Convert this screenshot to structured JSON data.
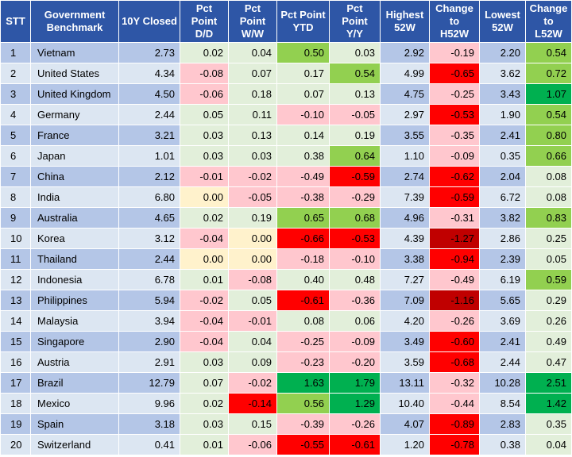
{
  "headers": [
    {
      "line1": "STT",
      "line2": ""
    },
    {
      "line1": "Government",
      "line2": "Benchmark"
    },
    {
      "line1": "10Y Closed",
      "line2": ""
    },
    {
      "line1": "Pct",
      "line2": "Point",
      "line3": "D/D"
    },
    {
      "line1": "Pct",
      "line2": "Point",
      "line3": "W/W"
    },
    {
      "line1": "Pct Point",
      "line2": "YTD"
    },
    {
      "line1": "Pct",
      "line2": "Point",
      "line3": "Y/Y"
    },
    {
      "line1": "Highest",
      "line2": "52W"
    },
    {
      "line1": "Change",
      "line2": "to",
      "line3": "H52W"
    },
    {
      "line1": "Lowest",
      "line2": "52W"
    },
    {
      "line1": "Change",
      "line2": "to",
      "line3": "L52W"
    }
  ],
  "rows": [
    {
      "stt": "1",
      "name": "Vietnam",
      "closed": "2.73",
      "dd": "0.02",
      "ww": "0.04",
      "ytd": "0.50",
      "yy": "0.03",
      "high": "2.92",
      "ch": "-0.19",
      "low": "2.20",
      "cl": "0.54"
    },
    {
      "stt": "2",
      "name": "United States",
      "closed": "4.34",
      "dd": "-0.08",
      "ww": "0.07",
      "ytd": "0.17",
      "yy": "0.54",
      "high": "4.99",
      "ch": "-0.65",
      "low": "3.62",
      "cl": "0.72"
    },
    {
      "stt": "3",
      "name": "United Kingdom",
      "closed": "4.50",
      "dd": "-0.06",
      "ww": "0.18",
      "ytd": "0.07",
      "yy": "0.13",
      "high": "4.75",
      "ch": "-0.25",
      "low": "3.43",
      "cl": "1.07"
    },
    {
      "stt": "4",
      "name": "Germany",
      "closed": "2.44",
      "dd": "0.05",
      "ww": "0.11",
      "ytd": "-0.10",
      "yy": "-0.05",
      "high": "2.97",
      "ch": "-0.53",
      "low": "1.90",
      "cl": "0.54"
    },
    {
      "stt": "5",
      "name": "France",
      "closed": "3.21",
      "dd": "0.03",
      "ww": "0.13",
      "ytd": "0.14",
      "yy": "0.19",
      "high": "3.55",
      "ch": "-0.35",
      "low": "2.41",
      "cl": "0.80"
    },
    {
      "stt": "6",
      "name": "Japan",
      "closed": "1.01",
      "dd": "0.03",
      "ww": "0.03",
      "ytd": "0.38",
      "yy": "0.64",
      "high": "1.10",
      "ch": "-0.09",
      "low": "0.35",
      "cl": "0.66"
    },
    {
      "stt": "7",
      "name": "China",
      "closed": "2.12",
      "dd": "-0.01",
      "ww": "-0.02",
      "ytd": "-0.49",
      "yy": "-0.59",
      "high": "2.74",
      "ch": "-0.62",
      "low": "2.04",
      "cl": "0.08"
    },
    {
      "stt": "8",
      "name": "India",
      "closed": "6.80",
      "dd": "0.00",
      "ww": "-0.05",
      "ytd": "-0.38",
      "yy": "-0.29",
      "high": "7.39",
      "ch": "-0.59",
      "low": "6.72",
      "cl": "0.08"
    },
    {
      "stt": "9",
      "name": "Australia",
      "closed": "4.65",
      "dd": "0.02",
      "ww": "0.19",
      "ytd": "0.65",
      "yy": "0.68",
      "high": "4.96",
      "ch": "-0.31",
      "low": "3.82",
      "cl": "0.83"
    },
    {
      "stt": "10",
      "name": "Korea",
      "closed": "3.12",
      "dd": "-0.04",
      "ww": "0.00",
      "ytd": "-0.66",
      "yy": "-0.53",
      "high": "4.39",
      "ch": "-1.27",
      "low": "2.86",
      "cl": "0.25"
    },
    {
      "stt": "11",
      "name": "Thailand",
      "closed": "2.44",
      "dd": "0.00",
      "ww": "0.00",
      "ytd": "-0.18",
      "yy": "-0.10",
      "high": "3.38",
      "ch": "-0.94",
      "low": "2.39",
      "cl": "0.05"
    },
    {
      "stt": "12",
      "name": "Indonesia",
      "closed": "6.78",
      "dd": "0.01",
      "ww": "-0.08",
      "ytd": "0.40",
      "yy": "0.48",
      "high": "7.27",
      "ch": "-0.49",
      "low": "6.19",
      "cl": "0.59"
    },
    {
      "stt": "13",
      "name": "Philippines",
      "closed": "5.94",
      "dd": "-0.02",
      "ww": "0.05",
      "ytd": "-0.61",
      "yy": "-0.36",
      "high": "7.09",
      "ch": "-1.16",
      "low": "5.65",
      "cl": "0.29"
    },
    {
      "stt": "14",
      "name": "Malaysia",
      "closed": "3.94",
      "dd": "-0.04",
      "ww": "-0.01",
      "ytd": "0.08",
      "yy": "0.06",
      "high": "4.20",
      "ch": "-0.26",
      "low": "3.69",
      "cl": "0.26"
    },
    {
      "stt": "15",
      "name": "Singapore",
      "closed": "2.90",
      "dd": "-0.04",
      "ww": "0.04",
      "ytd": "-0.25",
      "yy": "-0.09",
      "high": "3.49",
      "ch": "-0.60",
      "low": "2.41",
      "cl": "0.49"
    },
    {
      "stt": "16",
      "name": "Austria",
      "closed": "2.91",
      "dd": "0.03",
      "ww": "0.09",
      "ytd": "-0.23",
      "yy": "-0.20",
      "high": "3.59",
      "ch": "-0.68",
      "low": "2.44",
      "cl": "0.47"
    },
    {
      "stt": "17",
      "name": "Brazil",
      "closed": "12.79",
      "dd": "0.07",
      "ww": "-0.02",
      "ytd": "1.63",
      "yy": "1.79",
      "high": "13.11",
      "ch": "-0.32",
      "low": "10.28",
      "cl": "2.51"
    },
    {
      "stt": "18",
      "name": "Mexico",
      "closed": "9.96",
      "dd": "0.02",
      "ww": "-0.14",
      "ytd": "0.56",
      "yy": "1.29",
      "high": "10.40",
      "ch": "-0.44",
      "low": "8.54",
      "cl": "1.42"
    },
    {
      "stt": "19",
      "name": "Spain",
      "closed": "3.18",
      "dd": "0.03",
      "ww": "0.15",
      "ytd": "-0.39",
      "yy": "-0.26",
      "high": "4.07",
      "ch": "-0.89",
      "low": "2.83",
      "cl": "0.35"
    },
    {
      "stt": "20",
      "name": "Switzerland",
      "closed": "0.41",
      "dd": "0.01",
      "ww": "-0.06",
      "ytd": "-0.55",
      "yy": "-0.61",
      "high": "1.20",
      "ch": "-0.78",
      "low": "0.38",
      "cl": "0.04"
    }
  ],
  "colors": {
    "header_bg": "#2e56a6",
    "header_text": "#ffffff",
    "index_col_odd": "#b4c6e7",
    "index_col_even": "#dce6f2",
    "scale_neg_strong": "#c00000",
    "scale_neg": "#ff0000",
    "scale_neg_light": "#ffc7ce",
    "scale_zero": "#fff2cc",
    "scale_pos_light": "#e2efda",
    "scale_pos": "#92d050",
    "scale_pos_strong": "#00b050"
  }
}
